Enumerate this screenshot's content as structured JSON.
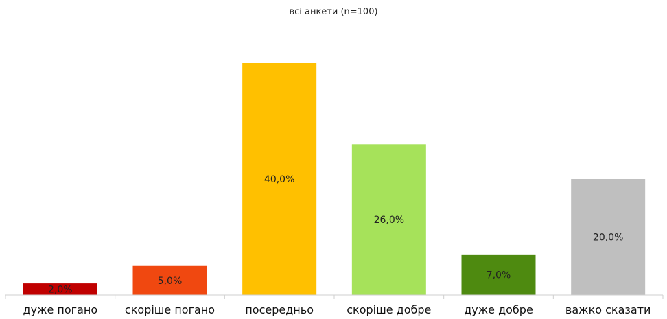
{
  "chart_data": {
    "type": "bar",
    "title": "всі анкети (n=100)",
    "categories": [
      "дуже погано",
      "скоріше погано",
      "посередньо",
      "скоріше добре",
      "дуже  добре",
      "важко сказати"
    ],
    "values": [
      2.0,
      5.0,
      40.0,
      26.0,
      7.0,
      20.0
    ],
    "value_labels": [
      "2,0%",
      "5,0%",
      "40,0%",
      "26,0%",
      "7,0%",
      "20,0%"
    ],
    "colors": [
      "#c00000",
      "#f04810",
      "#ffc000",
      "#a6e25a",
      "#4e8a10",
      "#bfbfbf"
    ],
    "label_colors": [
      "#222222",
      "#222222",
      "#222222",
      "#222222",
      "#222222",
      "#222222"
    ],
    "xlabel": "",
    "ylabel": "",
    "ylim": [
      0,
      40
    ],
    "grid": false,
    "legend": "none"
  }
}
